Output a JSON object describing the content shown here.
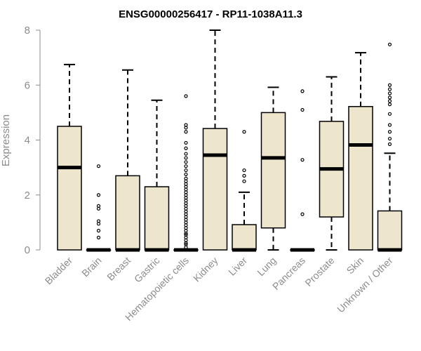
{
  "chart_data": {
    "type": "box",
    "title": "ENSG00000256417 - RP11-1038A11.3",
    "xlabel": "",
    "ylabel": "Expression",
    "ylim": [
      0,
      8
    ],
    "yticks": [
      0,
      2,
      4,
      6,
      8
    ],
    "categories": [
      "Bladder",
      "Brain",
      "Breast",
      "Gastric",
      "Hematopoietic cells",
      "Kidney",
      "Liver",
      "Lung",
      "Pancreas",
      "Prostate",
      "Skin",
      "Unknown / Other"
    ],
    "box_fill": "#ede6cd",
    "line_color": "#000000",
    "boxes": [
      {
        "whisker_low": 0,
        "q1": 0,
        "median": 3.0,
        "q3": 4.5,
        "whisker_high": 6.75,
        "outliers": []
      },
      {
        "whisker_low": 0,
        "q1": 0,
        "median": 0,
        "q3": 0,
        "whisker_high": 0,
        "outliers": [
          0.45,
          0.7,
          0.95,
          1.05,
          1.5,
          1.6,
          2.0,
          3.05
        ]
      },
      {
        "whisker_low": 0,
        "q1": 0,
        "median": 0,
        "q3": 2.7,
        "whisker_high": 6.55,
        "outliers": []
      },
      {
        "whisker_low": 0,
        "q1": 0,
        "median": 0,
        "q3": 2.3,
        "whisker_high": 5.45,
        "outliers": []
      },
      {
        "whisker_low": 0,
        "q1": 0,
        "median": 0,
        "q3": 0,
        "whisker_high": 0,
        "outliers": [
          0.1,
          0.2,
          0.25,
          0.35,
          0.45,
          0.55,
          0.6,
          0.7,
          0.8,
          0.9,
          1.0,
          1.1,
          1.2,
          1.3,
          1.4,
          1.5,
          1.6,
          1.7,
          1.8,
          1.9,
          2.0,
          2.1,
          2.2,
          2.3,
          2.4,
          2.5,
          2.6,
          2.75,
          2.9,
          3.05,
          3.2,
          3.35,
          3.5,
          3.7,
          3.9,
          4.3,
          4.45,
          4.55,
          5.6
        ]
      },
      {
        "whisker_low": 0,
        "q1": 0,
        "median": 3.45,
        "q3": 4.42,
        "whisker_high": 8.0,
        "outliers": []
      },
      {
        "whisker_low": 0,
        "q1": 0,
        "median": 0,
        "q3": 0.92,
        "whisker_high": 2.1,
        "outliers": [
          2.5,
          2.7,
          2.9,
          4.3
        ]
      },
      {
        "whisker_low": 0,
        "q1": 0.8,
        "median": 3.35,
        "q3": 5.0,
        "whisker_high": 5.92,
        "outliers": []
      },
      {
        "whisker_low": 0,
        "q1": 0,
        "median": 0,
        "q3": 0,
        "whisker_high": 0,
        "outliers": [
          1.3,
          3.28,
          5.1,
          5.78
        ]
      },
      {
        "whisker_low": 0,
        "q1": 1.2,
        "median": 2.95,
        "q3": 4.68,
        "whisker_high": 6.3,
        "outliers": []
      },
      {
        "whisker_low": 0,
        "q1": 0,
        "median": 3.82,
        "q3": 5.22,
        "whisker_high": 7.18,
        "outliers": []
      },
      {
        "whisker_low": 0,
        "q1": 0,
        "median": 0,
        "q3": 1.42,
        "whisker_high": 3.52,
        "outliers": [
          3.85,
          4.05,
          4.3,
          4.55,
          4.95,
          5.3,
          5.42,
          5.55,
          5.7,
          5.85,
          6.0,
          7.48
        ]
      }
    ]
  }
}
